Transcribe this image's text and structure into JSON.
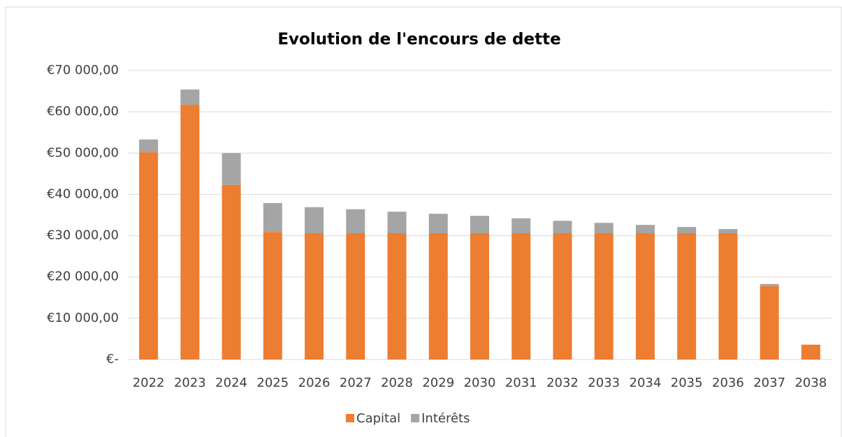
{
  "chart_data": {
    "type": "stacked_bar",
    "title": "Evolution de l'encours de dette",
    "categories": [
      "2022",
      "2023",
      "2024",
      "2025",
      "2026",
      "2027",
      "2028",
      "2029",
      "2030",
      "2031",
      "2032",
      "2033",
      "2034",
      "2035",
      "2036",
      "2037",
      "2038"
    ],
    "series": [
      {
        "name": "Capital",
        "color": "#ed7d31",
        "values": [
          50200,
          61700,
          42300,
          30900,
          30600,
          30600,
          30600,
          30600,
          30600,
          30600,
          30600,
          30600,
          30600,
          30600,
          30600,
          17800,
          3600
        ]
      },
      {
        "name": "Intérêts",
        "color": "#a5a5a5",
        "values": [
          3100,
          3700,
          7700,
          7000,
          6300,
          5800,
          5200,
          4700,
          4200,
          3600,
          3000,
          2500,
          2000,
          1500,
          1000,
          500,
          0
        ]
      }
    ],
    "ylim": [
      0,
      70000
    ],
    "yticks": [
      {
        "value": 0,
        "label": "€-"
      },
      {
        "value": 10000,
        "label": "€10 000,00"
      },
      {
        "value": 20000,
        "label": "€20 000,00"
      },
      {
        "value": 30000,
        "label": "€30 000,00"
      },
      {
        "value": 40000,
        "label": "€40 000,00"
      },
      {
        "value": 50000,
        "label": "€50 000,00"
      },
      {
        "value": 60000,
        "label": "€60 000,00"
      },
      {
        "value": 70000,
        "label": "€70 000,00"
      }
    ],
    "grid": true,
    "legend": "bottom"
  }
}
